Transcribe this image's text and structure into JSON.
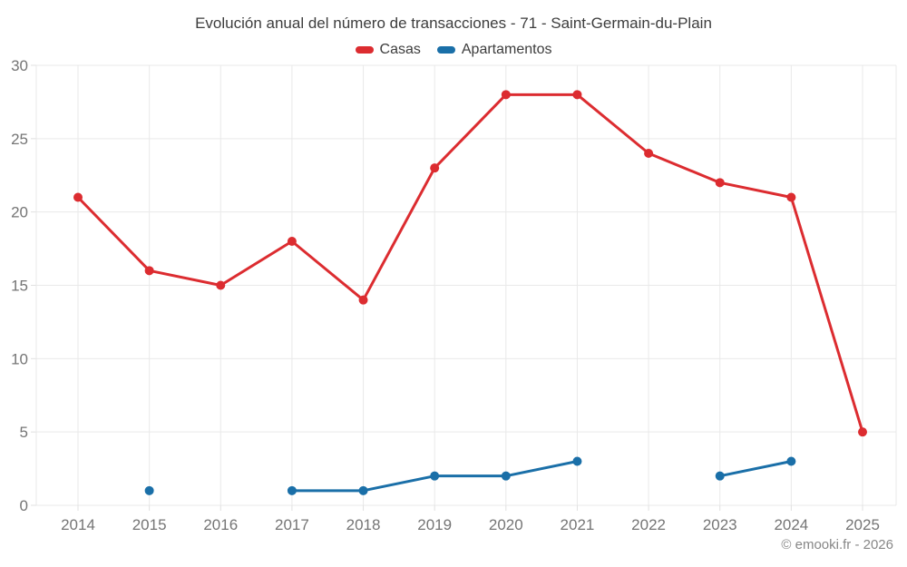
{
  "chart": {
    "title": "Evolución anual del número de transacciones - 71 - Saint-Germain-du-Plain",
    "footer": "© emooki.fr - 2026"
  },
  "chart_data": {
    "type": "line",
    "categories": [
      "2014",
      "2015",
      "2016",
      "2017",
      "2018",
      "2019",
      "2020",
      "2021",
      "2022",
      "2023",
      "2024",
      "2025"
    ],
    "series": [
      {
        "name": "Casas",
        "color": "#dc2c30",
        "values": [
          21,
          16,
          15,
          18,
          14,
          23,
          28,
          28,
          24,
          22,
          21,
          5
        ]
      },
      {
        "name": "Apartamentos",
        "color": "#1a6fa8",
        "values": [
          null,
          1,
          null,
          1,
          1,
          2,
          2,
          3,
          null,
          2,
          3,
          null
        ]
      }
    ],
    "title": "Evolución anual del número de transacciones - 71 - Saint-Germain-du-Plain",
    "xlabel": "",
    "ylabel": "",
    "ylim": [
      0,
      30
    ],
    "yticks": [
      0,
      5,
      10,
      15,
      20,
      25,
      30
    ],
    "grid": true,
    "legend_position": "top",
    "point_radius": 5
  }
}
